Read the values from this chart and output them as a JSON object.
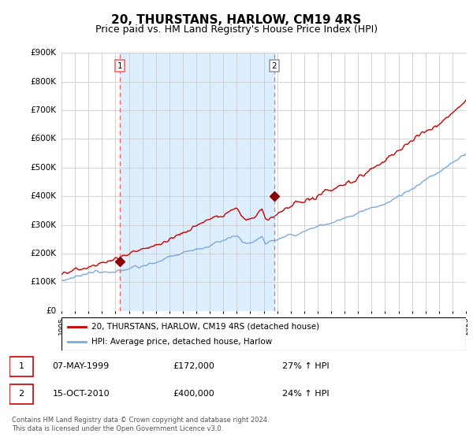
{
  "title": "20, THURSTANS, HARLOW, CM19 4RS",
  "subtitle": "Price paid vs. HM Land Registry's House Price Index (HPI)",
  "title_fontsize": 11,
  "subtitle_fontsize": 9,
  "ylim": [
    0,
    900000
  ],
  "yticks": [
    0,
    100000,
    200000,
    300000,
    400000,
    500000,
    600000,
    700000,
    800000,
    900000
  ],
  "ytick_labels": [
    "£0",
    "£100K",
    "£200K",
    "£300K",
    "£400K",
    "£500K",
    "£600K",
    "£700K",
    "£800K",
    "£900K"
  ],
  "x_start_year": 1995,
  "x_end_year": 2025,
  "sale1_x": 4.33,
  "sale1_price": 172000,
  "sale2_x": 15.79,
  "sale2_price": 400000,
  "shade_color": "#ddeeff",
  "vline1_color": "#ff6666",
  "vline2_color": "#9999bb",
  "hpi_line_color": "#7aaadd",
  "price_line_color": "#cc0000",
  "marker_color": "#880000",
  "background_color": "#ffffff",
  "grid_color": "#cccccc",
  "legend_label1": "20, THURSTANS, HARLOW, CM19 4RS (detached house)",
  "legend_label2": "HPI: Average price, detached house, Harlow",
  "footer_text": "Contains HM Land Registry data © Crown copyright and database right 2024.\nThis data is licensed under the Open Government Licence v3.0.",
  "table_row1": [
    "1",
    "07-MAY-1999",
    "£172,000",
    "27% ↑ HPI"
  ],
  "table_row2": [
    "2",
    "15-OCT-2010",
    "£400,000",
    "24% ↑ HPI"
  ]
}
